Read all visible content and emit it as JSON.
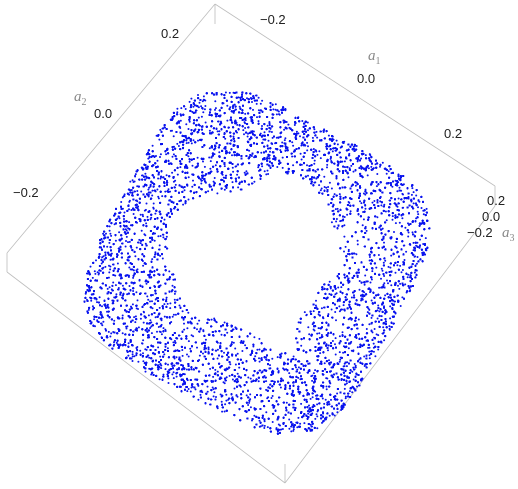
{
  "chart_data": {
    "type": "scatter",
    "dimensions": 3,
    "title": "",
    "axes": {
      "a1": {
        "label": "a",
        "subscript": "1",
        "ticks": [
          "−0.2",
          "0.0",
          "0.2"
        ]
      },
      "a2": {
        "label": "a",
        "subscript": "2",
        "ticks": [
          "0.2",
          "0.0",
          "−0.2"
        ]
      },
      "a3": {
        "label": "a",
        "subscript": "3",
        "ticks": [
          "0.2",
          "0.0",
          "−0.2"
        ]
      }
    },
    "ranges": {
      "a1": [
        -0.3,
        0.3
      ],
      "a2": [
        -0.3,
        0.3
      ],
      "a3": [
        -0.3,
        0.3
      ]
    },
    "series": [
      {
        "marker": "point",
        "color": "#0a14ee",
        "description_shape": "square ring with a heart-shaped hole"
      }
    ],
    "grid": false
  }
}
